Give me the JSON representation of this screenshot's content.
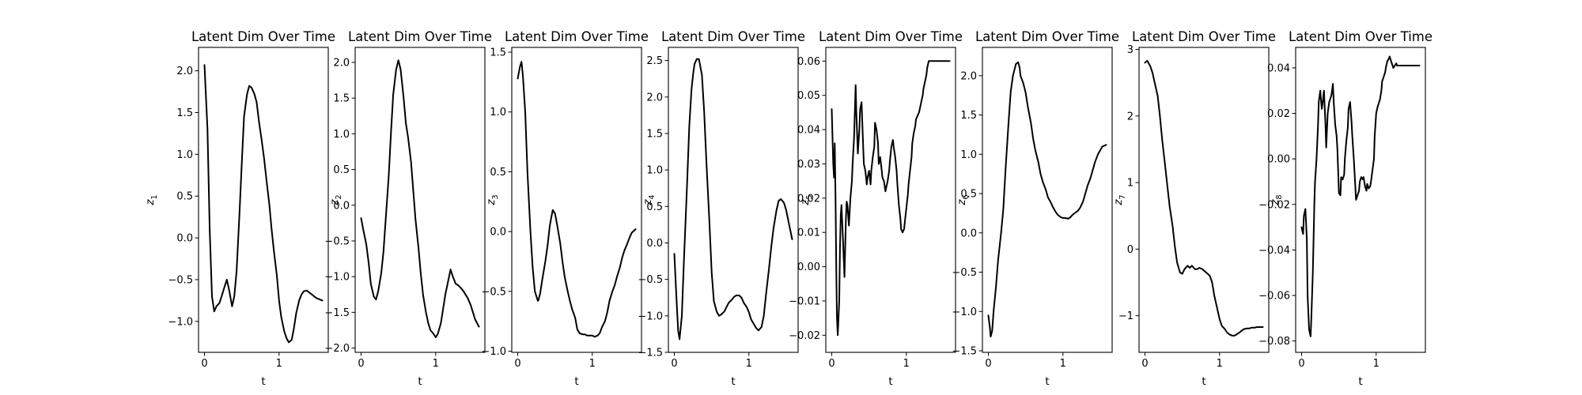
{
  "chart_data": [
    {
      "type": "line",
      "title": "Latent Dim Over Time",
      "xlabel": "t",
      "ylabel": {
        "base": "z",
        "sub": "1"
      },
      "xlim": [
        -0.08,
        1.66
      ],
      "ylim": [
        -1.37,
        2.28
      ],
      "xticks": [
        0,
        1
      ],
      "yticks": [
        -1.0,
        -0.5,
        0.0,
        0.5,
        1.0,
        1.5,
        2.0
      ],
      "ytick_decimals": 1,
      "grid": false,
      "legend": "none",
      "x": [
        0.0,
        0.04,
        0.07,
        0.1,
        0.13,
        0.16,
        0.2,
        0.23,
        0.27,
        0.3,
        0.33,
        0.37,
        0.4,
        0.43,
        0.47,
        0.5,
        0.53,
        0.57,
        0.6,
        0.63,
        0.67,
        0.7,
        0.73,
        0.77,
        0.8,
        0.83,
        0.87,
        0.9,
        0.93,
        0.97,
        1.0,
        1.03,
        1.07,
        1.1,
        1.13,
        1.17,
        1.2,
        1.23,
        1.27,
        1.3,
        1.33,
        1.37,
        1.4,
        1.43,
        1.47,
        1.5,
        1.53,
        1.58
      ],
      "y": [
        2.07,
        1.3,
        0.1,
        -0.7,
        -0.88,
        -0.82,
        -0.78,
        -0.7,
        -0.58,
        -0.5,
        -0.62,
        -0.82,
        -0.7,
        -0.4,
        0.3,
        0.9,
        1.45,
        1.72,
        1.82,
        1.8,
        1.72,
        1.62,
        1.4,
        1.15,
        0.95,
        0.7,
        0.4,
        0.1,
        -0.15,
        -0.45,
        -0.75,
        -0.95,
        -1.12,
        -1.2,
        -1.25,
        -1.22,
        -1.08,
        -0.9,
        -0.75,
        -0.68,
        -0.64,
        -0.63,
        -0.65,
        -0.67,
        -0.7,
        -0.72,
        -0.73,
        -0.75
      ]
    },
    {
      "type": "line",
      "title": "Latent Dim Over Time",
      "xlabel": "t",
      "ylabel": {
        "base": "z",
        "sub": "2"
      },
      "xlim": [
        -0.08,
        1.66
      ],
      "ylim": [
        -2.06,
        2.21
      ],
      "xticks": [
        0,
        1
      ],
      "yticks": [
        -2.0,
        -1.5,
        -1.0,
        -0.5,
        0.0,
        0.5,
        1.0,
        1.5,
        2.0
      ],
      "ytick_decimals": 1,
      "grid": false,
      "legend": "none",
      "x": [
        0.0,
        0.03,
        0.07,
        0.1,
        0.13,
        0.17,
        0.2,
        0.23,
        0.27,
        0.3,
        0.33,
        0.37,
        0.4,
        0.43,
        0.47,
        0.5,
        0.53,
        0.57,
        0.6,
        0.63,
        0.67,
        0.7,
        0.73,
        0.77,
        0.8,
        0.83,
        0.87,
        0.9,
        0.93,
        0.97,
        1.0,
        1.03,
        1.07,
        1.1,
        1.13,
        1.17,
        1.2,
        1.23,
        1.27,
        1.3,
        1.33,
        1.37,
        1.4,
        1.43,
        1.47,
        1.5,
        1.53,
        1.58
      ],
      "y": [
        -0.18,
        -0.35,
        -0.55,
        -0.8,
        -1.1,
        -1.28,
        -1.32,
        -1.2,
        -0.95,
        -0.65,
        -0.2,
        0.4,
        1.0,
        1.55,
        1.9,
        2.03,
        1.9,
        1.5,
        1.15,
        0.95,
        0.6,
        0.2,
        -0.2,
        -0.6,
        -0.95,
        -1.25,
        -1.5,
        -1.65,
        -1.75,
        -1.8,
        -1.85,
        -1.8,
        -1.65,
        -1.45,
        -1.25,
        -1.05,
        -0.9,
        -1.0,
        -1.1,
        -1.12,
        -1.15,
        -1.2,
        -1.25,
        -1.3,
        -1.4,
        -1.5,
        -1.6,
        -1.7
      ]
    },
    {
      "type": "line",
      "title": "Latent Dim Over Time",
      "xlabel": "t",
      "ylabel": {
        "base": "z",
        "sub": "3"
      },
      "xlim": [
        -0.08,
        1.66
      ],
      "ylim": [
        -1.01,
        1.54
      ],
      "xticks": [
        0,
        1
      ],
      "yticks": [
        -1.0,
        -0.5,
        0.0,
        0.5,
        1.0,
        1.5
      ],
      "ytick_decimals": 1,
      "grid": false,
      "legend": "none",
      "x": [
        0.0,
        0.03,
        0.05,
        0.07,
        0.1,
        0.13,
        0.17,
        0.2,
        0.23,
        0.27,
        0.28,
        0.3,
        0.33,
        0.37,
        0.4,
        0.43,
        0.45,
        0.47,
        0.5,
        0.53,
        0.57,
        0.6,
        0.63,
        0.67,
        0.7,
        0.73,
        0.77,
        0.8,
        0.83,
        0.87,
        0.9,
        0.93,
        0.97,
        1.0,
        1.03,
        1.07,
        1.1,
        1.13,
        1.17,
        1.2,
        1.23,
        1.27,
        1.3,
        1.33,
        1.37,
        1.4,
        1.43,
        1.47,
        1.5,
        1.53,
        1.58
      ],
      "y": [
        1.28,
        1.38,
        1.42,
        1.3,
        1.0,
        0.5,
        0.0,
        -0.3,
        -0.5,
        -0.58,
        -0.57,
        -0.52,
        -0.4,
        -0.25,
        -0.12,
        0.05,
        0.12,
        0.18,
        0.15,
        0.05,
        -0.1,
        -0.25,
        -0.38,
        -0.5,
        -0.58,
        -0.65,
        -0.72,
        -0.82,
        -0.85,
        -0.86,
        -0.86,
        -0.87,
        -0.87,
        -0.87,
        -0.88,
        -0.87,
        -0.85,
        -0.8,
        -0.75,
        -0.68,
        -0.58,
        -0.5,
        -0.45,
        -0.38,
        -0.3,
        -0.22,
        -0.16,
        -0.1,
        -0.05,
        -0.01,
        0.02
      ]
    },
    {
      "type": "line",
      "title": "Latent Dim Over Time",
      "xlabel": "t",
      "ylabel": {
        "base": "z",
        "sub": "4"
      },
      "xlim": [
        -0.08,
        1.66
      ],
      "ylim": [
        -1.5,
        2.68
      ],
      "xticks": [
        0,
        1
      ],
      "yticks": [
        -1.5,
        -1.0,
        -0.5,
        0.0,
        0.5,
        1.0,
        1.5,
        2.0,
        2.5
      ],
      "ytick_decimals": 1,
      "grid": false,
      "legend": "none",
      "x": [
        0.0,
        0.03,
        0.05,
        0.07,
        0.1,
        0.13,
        0.17,
        0.2,
        0.23,
        0.25,
        0.27,
        0.3,
        0.33,
        0.37,
        0.4,
        0.43,
        0.47,
        0.5,
        0.53,
        0.57,
        0.6,
        0.63,
        0.67,
        0.7,
        0.73,
        0.77,
        0.8,
        0.83,
        0.87,
        0.9,
        0.93,
        0.97,
        1.0,
        1.03,
        1.07,
        1.1,
        1.13,
        1.17,
        1.2,
        1.23,
        1.27,
        1.3,
        1.33,
        1.37,
        1.4,
        1.43,
        1.47,
        1.5,
        1.53,
        1.58
      ],
      "y": [
        -0.15,
        -0.8,
        -1.2,
        -1.32,
        -1.0,
        -0.2,
        0.8,
        1.6,
        2.1,
        2.3,
        2.45,
        2.52,
        2.52,
        2.3,
        1.8,
        1.1,
        0.3,
        -0.4,
        -0.8,
        -0.95,
        -1.0,
        -0.98,
        -0.94,
        -0.88,
        -0.82,
        -0.78,
        -0.74,
        -0.72,
        -0.72,
        -0.75,
        -0.82,
        -0.88,
        -0.95,
        -1.05,
        -1.12,
        -1.17,
        -1.2,
        -1.15,
        -1.0,
        -0.7,
        -0.35,
        -0.05,
        0.2,
        0.45,
        0.58,
        0.6,
        0.55,
        0.45,
        0.3,
        0.05
      ]
    },
    {
      "type": "line",
      "title": "Latent Dim Over Time",
      "xlabel": "t",
      "ylabel": {
        "base": "z",
        "sub": "5"
      },
      "xlim": [
        -0.08,
        1.66
      ],
      "ylim": [
        -0.025,
        0.064
      ],
      "xticks": [
        0,
        1
      ],
      "yticks": [
        -0.02,
        -0.01,
        0.0,
        0.01,
        0.02,
        0.03,
        0.04,
        0.05,
        0.06
      ],
      "ytick_decimals": 2,
      "grid": false,
      "legend": "none",
      "x": [
        0.0,
        0.02,
        0.03,
        0.04,
        0.05,
        0.06,
        0.07,
        0.08,
        0.1,
        0.11,
        0.12,
        0.13,
        0.15,
        0.17,
        0.19,
        0.2,
        0.21,
        0.22,
        0.23,
        0.25,
        0.27,
        0.28,
        0.3,
        0.32,
        0.33,
        0.35,
        0.37,
        0.38,
        0.4,
        0.42,
        0.43,
        0.45,
        0.47,
        0.48,
        0.5,
        0.52,
        0.53,
        0.55,
        0.57,
        0.58,
        0.6,
        0.62,
        0.63,
        0.65,
        0.67,
        0.68,
        0.7,
        0.72,
        0.73,
        0.75,
        0.77,
        0.78,
        0.8,
        0.82,
        0.83,
        0.85,
        0.87,
        0.88,
        0.9,
        0.92,
        0.93,
        0.95,
        0.97,
        0.98,
        1.0,
        1.02,
        1.03,
        1.05,
        1.07,
        1.08,
        1.1,
        1.12,
        1.13,
        1.15,
        1.17,
        1.18,
        1.2,
        1.22,
        1.23,
        1.25,
        1.27,
        1.28,
        1.3,
        1.32,
        1.33,
        1.35,
        1.37,
        1.38,
        1.4,
        1.42,
        1.43,
        1.45,
        1.47,
        1.48,
        1.5,
        1.52,
        1.53,
        1.55,
        1.58
      ],
      "y": [
        0.046,
        0.03,
        0.026,
        0.036,
        0.02,
        0.0,
        -0.015,
        -0.02,
        -0.01,
        0.005,
        0.015,
        0.018,
        0.008,
        -0.003,
        0.014,
        0.019,
        0.018,
        0.015,
        0.012,
        0.02,
        0.025,
        0.03,
        0.038,
        0.053,
        0.045,
        0.033,
        0.04,
        0.046,
        0.048,
        0.036,
        0.03,
        0.028,
        0.024,
        0.026,
        0.028,
        0.024,
        0.028,
        0.032,
        0.035,
        0.042,
        0.04,
        0.036,
        0.03,
        0.032,
        0.028,
        0.026,
        0.025,
        0.022,
        0.023,
        0.025,
        0.028,
        0.031,
        0.035,
        0.037,
        0.035,
        0.032,
        0.028,
        0.024,
        0.018,
        0.014,
        0.011,
        0.01,
        0.011,
        0.013,
        0.017,
        0.021,
        0.024,
        0.028,
        0.032,
        0.036,
        0.039,
        0.041,
        0.043,
        0.044,
        0.045,
        0.046,
        0.048,
        0.05,
        0.052,
        0.054,
        0.056,
        0.058,
        0.06,
        0.06,
        0.06,
        0.06,
        0.06,
        0.06,
        0.06,
        0.06,
        0.06,
        0.06,
        0.06,
        0.06,
        0.06,
        0.06,
        0.06,
        0.06,
        0.06
      ]
    },
    {
      "type": "line",
      "title": "Latent Dim Over Time",
      "xlabel": "t",
      "ylabel": {
        "base": "z",
        "sub": "6"
      },
      "xlim": [
        -0.08,
        1.66
      ],
      "ylim": [
        -1.52,
        2.36
      ],
      "xticks": [
        0,
        1
      ],
      "yticks": [
        -1.5,
        -1.0,
        -0.5,
        0.0,
        0.5,
        1.0,
        1.5,
        2.0
      ],
      "ytick_decimals": 1,
      "grid": false,
      "legend": "none",
      "x": [
        0.0,
        0.02,
        0.03,
        0.05,
        0.07,
        0.1,
        0.13,
        0.17,
        0.2,
        0.23,
        0.27,
        0.3,
        0.33,
        0.37,
        0.4,
        0.42,
        0.43,
        0.45,
        0.47,
        0.5,
        0.53,
        0.57,
        0.6,
        0.63,
        0.67,
        0.7,
        0.73,
        0.77,
        0.8,
        0.83,
        0.87,
        0.9,
        0.93,
        0.97,
        1.0,
        1.03,
        1.07,
        1.1,
        1.13,
        1.17,
        1.2,
        1.23,
        1.27,
        1.3,
        1.33,
        1.37,
        1.4,
        1.43,
        1.47,
        1.5,
        1.53,
        1.58
      ],
      "y": [
        -1.05,
        -1.2,
        -1.32,
        -1.25,
        -1.0,
        -0.7,
        -0.35,
        0.0,
        0.3,
        0.8,
        1.4,
        1.8,
        2.0,
        2.15,
        2.17,
        2.1,
        2.0,
        1.95,
        1.9,
        1.78,
        1.6,
        1.4,
        1.2,
        1.05,
        0.9,
        0.75,
        0.65,
        0.55,
        0.45,
        0.4,
        0.32,
        0.27,
        0.23,
        0.2,
        0.19,
        0.19,
        0.18,
        0.2,
        0.23,
        0.26,
        0.28,
        0.32,
        0.4,
        0.5,
        0.6,
        0.7,
        0.8,
        0.9,
        1.0,
        1.05,
        1.1,
        1.12
      ]
    },
    {
      "type": "line",
      "title": "Latent Dim Over Time",
      "xlabel": "t",
      "ylabel": {
        "base": "z",
        "sub": "7"
      },
      "xlim": [
        -0.08,
        1.66
      ],
      "ylim": [
        -1.55,
        3.03
      ],
      "xticks": [
        0,
        1
      ],
      "yticks": [
        -1,
        0,
        1,
        2,
        3
      ],
      "ytick_decimals": 0,
      "grid": false,
      "legend": "none",
      "x": [
        0.0,
        0.03,
        0.07,
        0.1,
        0.13,
        0.17,
        0.2,
        0.23,
        0.27,
        0.3,
        0.33,
        0.37,
        0.4,
        0.43,
        0.47,
        0.5,
        0.53,
        0.57,
        0.6,
        0.63,
        0.67,
        0.7,
        0.73,
        0.77,
        0.8,
        0.83,
        0.87,
        0.9,
        0.93,
        0.97,
        1.0,
        1.03,
        1.07,
        1.1,
        1.13,
        1.17,
        1.2,
        1.23,
        1.27,
        1.3,
        1.33,
        1.37,
        1.4,
        1.43,
        1.47,
        1.5,
        1.53,
        1.58
      ],
      "y": [
        2.8,
        2.83,
        2.75,
        2.65,
        2.5,
        2.3,
        2.0,
        1.65,
        1.25,
        0.95,
        0.65,
        0.35,
        0.05,
        -0.2,
        -0.35,
        -0.37,
        -0.3,
        -0.25,
        -0.28,
        -0.25,
        -0.3,
        -0.3,
        -0.28,
        -0.3,
        -0.33,
        -0.36,
        -0.4,
        -0.5,
        -0.7,
        -0.9,
        -1.05,
        -1.15,
        -1.2,
        -1.25,
        -1.28,
        -1.3,
        -1.3,
        -1.28,
        -1.25,
        -1.22,
        -1.2,
        -1.19,
        -1.19,
        -1.18,
        -1.18,
        -1.17,
        -1.17,
        -1.17
      ]
    },
    {
      "type": "line",
      "title": "Latent Dim Over Time",
      "xlabel": "t",
      "ylabel": {
        "base": "z",
        "sub": "8"
      },
      "xlim": [
        -0.08,
        1.66
      ],
      "ylim": [
        -0.085,
        0.049
      ],
      "xticks": [
        0,
        1
      ],
      "yticks": [
        -0.08,
        -0.06,
        -0.04,
        -0.02,
        0.0,
        0.02,
        0.04
      ],
      "ytick_decimals": 2,
      "grid": false,
      "legend": "none",
      "x": [
        0.0,
        0.02,
        0.03,
        0.05,
        0.07,
        0.08,
        0.1,
        0.12,
        0.13,
        0.15,
        0.17,
        0.18,
        0.2,
        0.22,
        0.23,
        0.25,
        0.27,
        0.28,
        0.3,
        0.32,
        0.33,
        0.35,
        0.37,
        0.38,
        0.4,
        0.42,
        0.43,
        0.45,
        0.47,
        0.48,
        0.5,
        0.52,
        0.53,
        0.55,
        0.57,
        0.58,
        0.6,
        0.62,
        0.63,
        0.65,
        0.67,
        0.68,
        0.7,
        0.72,
        0.73,
        0.75,
        0.77,
        0.78,
        0.8,
        0.82,
        0.83,
        0.85,
        0.87,
        0.88,
        0.9,
        0.92,
        0.93,
        0.95,
        0.97,
        0.98,
        1.0,
        1.02,
        1.03,
        1.05,
        1.07,
        1.08,
        1.1,
        1.12,
        1.13,
        1.15,
        1.17,
        1.18,
        1.2,
        1.22,
        1.23,
        1.25,
        1.27,
        1.28,
        1.3,
        1.32,
        1.33,
        1.35,
        1.37,
        1.38,
        1.4,
        1.42,
        1.43,
        1.45,
        1.47,
        1.48,
        1.5,
        1.52,
        1.53,
        1.55,
        1.58
      ],
      "y": [
        -0.03,
        -0.033,
        -0.025,
        -0.022,
        -0.035,
        -0.06,
        -0.075,
        -0.078,
        -0.07,
        -0.05,
        -0.02,
        -0.01,
        0.0,
        0.015,
        0.025,
        0.03,
        0.022,
        0.024,
        0.03,
        0.015,
        0.005,
        0.02,
        0.025,
        0.026,
        0.028,
        0.033,
        0.025,
        0.015,
        0.01,
        0.004,
        -0.015,
        -0.016,
        -0.008,
        -0.009,
        -0.007,
        0.0,
        0.008,
        0.014,
        0.022,
        0.025,
        0.016,
        0.01,
        0.0,
        -0.012,
        -0.018,
        -0.016,
        -0.014,
        -0.01,
        -0.008,
        -0.009,
        -0.008,
        -0.012,
        -0.014,
        -0.011,
        -0.013,
        -0.012,
        -0.01,
        -0.005,
        0.0,
        0.01,
        0.02,
        0.023,
        0.024,
        0.026,
        0.03,
        0.034,
        0.036,
        0.038,
        0.04,
        0.043,
        0.044,
        0.045,
        0.043,
        0.041,
        0.04,
        0.041,
        0.042,
        0.041,
        0.041,
        0.041,
        0.041,
        0.041,
        0.041,
        0.041,
        0.041,
        0.041,
        0.041,
        0.041,
        0.041,
        0.041,
        0.041,
        0.041,
        0.041,
        0.041,
        0.041
      ]
    }
  ]
}
